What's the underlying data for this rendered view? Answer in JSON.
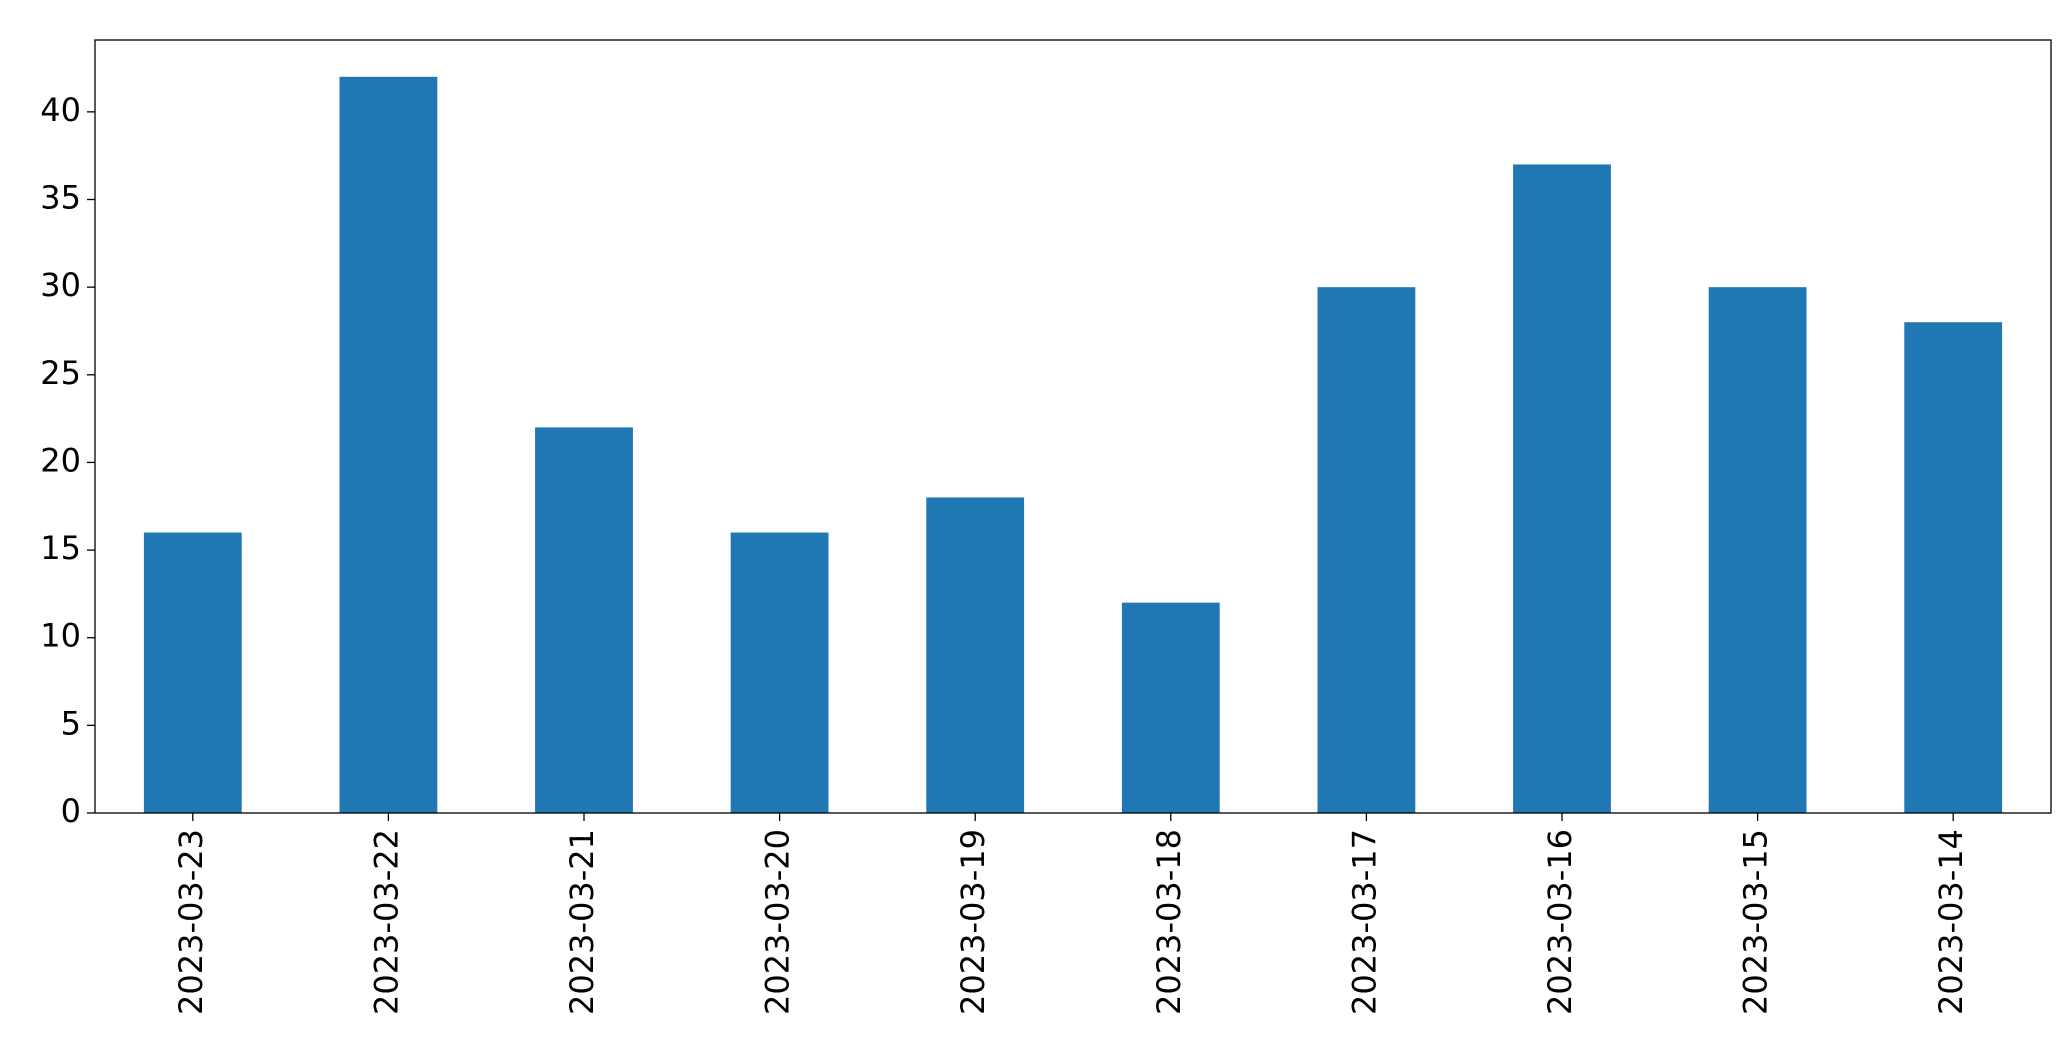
{
  "chart_data": {
    "type": "bar",
    "categories": [
      "2023-03-23",
      "2023-03-22",
      "2023-03-21",
      "2023-03-20",
      "2023-03-19",
      "2023-03-18",
      "2023-03-17",
      "2023-03-16",
      "2023-03-15",
      "2023-03-14"
    ],
    "values": [
      16,
      42,
      22,
      16,
      18,
      12,
      30,
      37,
      30,
      28
    ],
    "color": "#1f77b4",
    "ylim": [
      0,
      44.1
    ],
    "yticks": [
      0,
      5,
      10,
      15,
      20,
      25,
      30,
      35,
      40
    ],
    "grid": false
  }
}
